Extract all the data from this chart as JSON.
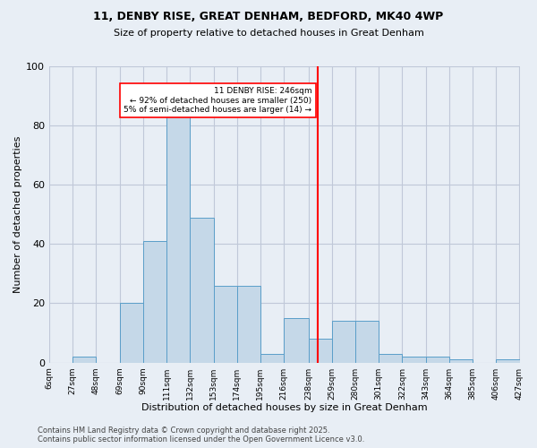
{
  "title1": "11, DENBY RISE, GREAT DENHAM, BEDFORD, MK40 4WP",
  "title2": "Size of property relative to detached houses in Great Denham",
  "xlabel": "Distribution of detached houses by size in Great Denham",
  "ylabel": "Number of detached properties",
  "bins": [
    "6sqm",
    "27sqm",
    "48sqm",
    "69sqm",
    "90sqm",
    "111sqm",
    "132sqm",
    "153sqm",
    "174sqm",
    "195sqm",
    "216sqm",
    "238sqm",
    "259sqm",
    "280sqm",
    "301sqm",
    "322sqm",
    "343sqm",
    "364sqm",
    "385sqm",
    "406sqm",
    "427sqm"
  ],
  "bin_edges": [
    6,
    27,
    48,
    69,
    90,
    111,
    132,
    153,
    174,
    195,
    216,
    238,
    259,
    280,
    301,
    322,
    343,
    364,
    385,
    406,
    427
  ],
  "bar_heights": [
    0,
    2,
    0,
    20,
    41,
    84,
    49,
    26,
    26,
    3,
    15,
    8,
    14,
    14,
    3,
    2,
    2,
    1,
    0,
    1,
    1
  ],
  "bar_color": "#c5d8e8",
  "bar_edge_color": "#5a9ec9",
  "grid_color": "#c0c8d8",
  "bg_color": "#e8eef5",
  "vline_x": 246,
  "vline_color": "red",
  "annotation_text": "11 DENBY RISE: 246sqm\n← 92% of detached houses are smaller (250)\n5% of semi-detached houses are larger (14) →",
  "annotation_box_color": "white",
  "annotation_box_edge": "red",
  "ylim": [
    0,
    100
  ],
  "yticks": [
    0,
    20,
    40,
    60,
    80,
    100
  ],
  "footer1": "Contains HM Land Registry data © Crown copyright and database right 2025.",
  "footer2": "Contains public sector information licensed under the Open Government Licence v3.0."
}
